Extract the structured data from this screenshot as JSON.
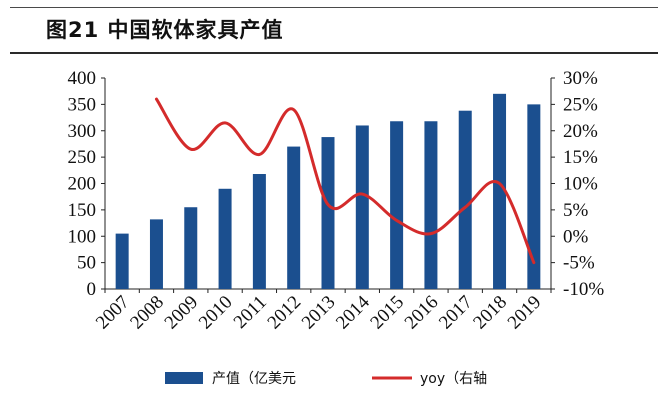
{
  "title": "图21 中国软体家具产值",
  "chart_data": {
    "type": "bar",
    "title": "图21 中国软体家具产值",
    "categories": [
      "2007",
      "2008",
      "2009",
      "2010",
      "2011",
      "2012",
      "2013",
      "2014",
      "2015",
      "2016",
      "2017",
      "2018",
      "2019"
    ],
    "series": [
      {
        "name": "产值（亿美元",
        "type": "bar",
        "axis": "left",
        "values": [
          105,
          132,
          155,
          190,
          218,
          270,
          288,
          310,
          318,
          318,
          338,
          370,
          350
        ]
      },
      {
        "name": "yoy（右轴",
        "type": "line",
        "axis": "right",
        "values": [
          null,
          26,
          16.5,
          21.5,
          15.5,
          24,
          6,
          8,
          3,
          0.5,
          5.5,
          10,
          -5
        ]
      }
    ],
    "y_left": {
      "ticks": [
        0,
        50,
        100,
        150,
        200,
        250,
        300,
        350,
        400
      ],
      "ylim": [
        0,
        400
      ]
    },
    "y_right": {
      "ticks": [
        "-10%",
        "-5%",
        "0%",
        "5%",
        "10%",
        "15%",
        "20%",
        "25%",
        "30%"
      ],
      "ylim": [
        -10,
        30
      ]
    },
    "legend_placement": "bottom",
    "colors": {
      "bar": "#1b4f8f",
      "line": "#d42b2b"
    }
  }
}
